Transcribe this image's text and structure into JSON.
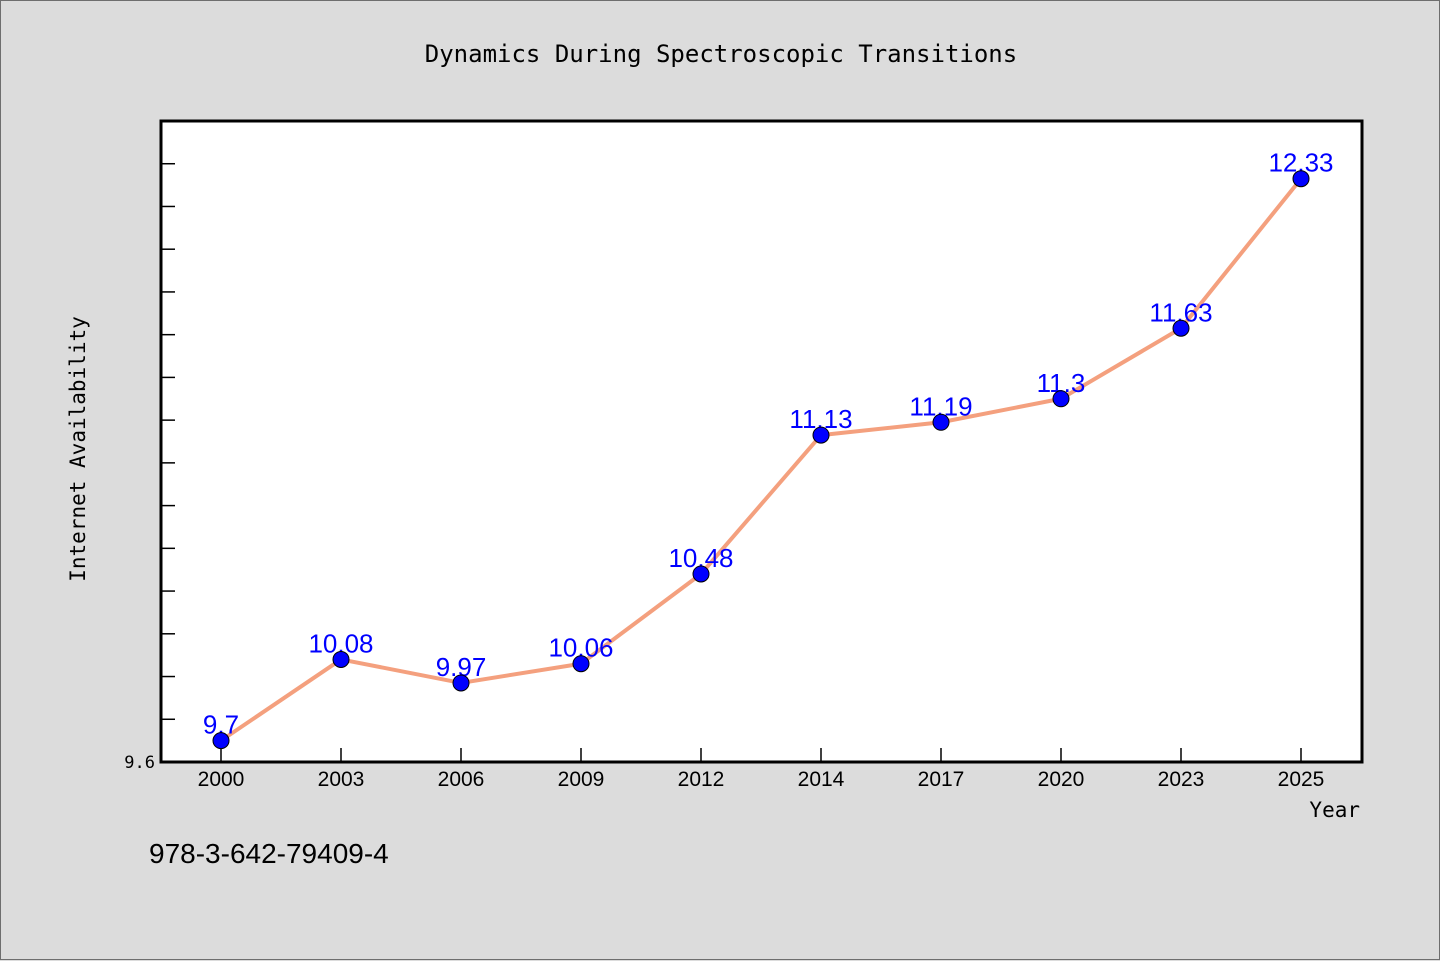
{
  "chart_data": {
    "type": "line",
    "title": "Dynamics During Spectroscopic Transitions",
    "xlabel": "Year",
    "ylabel": "Internet Availability",
    "categories": [
      "2000",
      "2003",
      "2006",
      "2009",
      "2012",
      "2014",
      "2017",
      "2020",
      "2023",
      "2025"
    ],
    "series": [
      {
        "values": [
          9.7,
          10.08,
          9.97,
          10.06,
          10.48,
          11.13,
          11.19,
          11.3,
          11.63,
          12.33
        ],
        "labels": [
          "9.7",
          "10.08",
          "9.97",
          "10.06",
          "10.48",
          "11.13",
          "11.19",
          "11.3",
          "11.63",
          "12.33"
        ]
      }
    ],
    "ylim": [
      9.6,
      12.6
    ],
    "yticks_labeled": [
      "9.6"
    ],
    "ytick_step": 0.2,
    "grid": false,
    "colors": {
      "line": "#f4a07e",
      "marker": "#0000ff",
      "data_label": "#0000ff",
      "plot_background": "#ffffff",
      "figure_background": "#dcdcdc"
    }
  },
  "footer": {
    "isbn": "978-3-642-79409-4"
  }
}
